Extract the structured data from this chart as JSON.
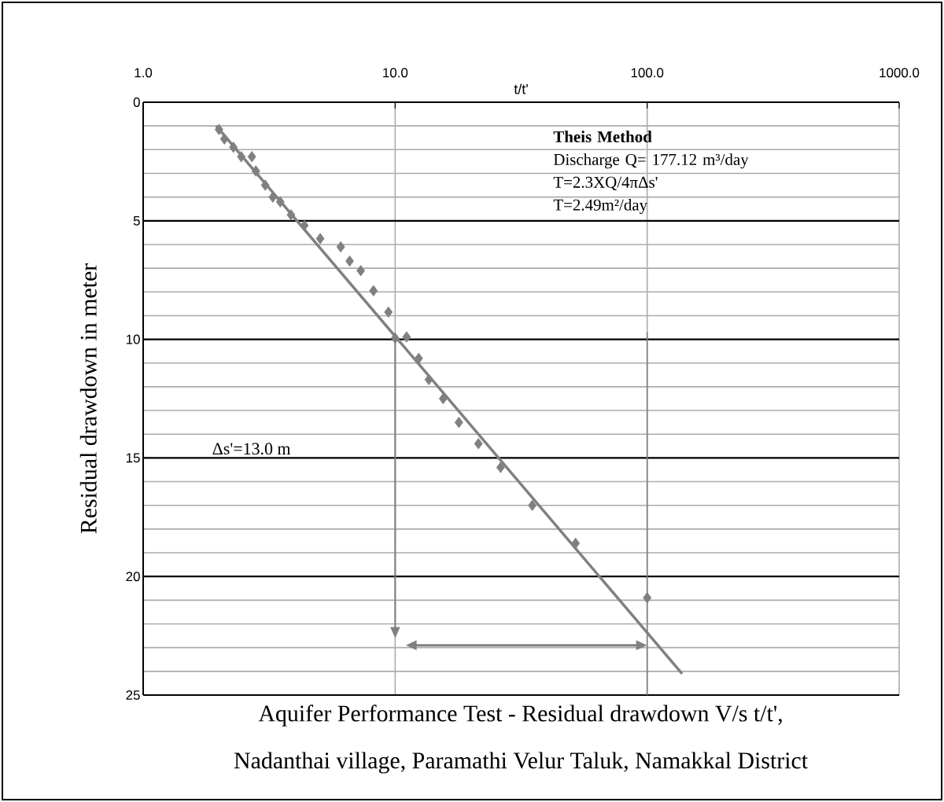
{
  "chart_data": {
    "type": "scatter",
    "title": "Aquifer Performance Test - Residual drawdown V/s t/t',",
    "subtitle": "Nadanthai village, Paramathi Velur Taluk, Namakkal District",
    "xlabel": "t/t'",
    "ylabel": "Residual drawdown in meter",
    "annotations": [
      "**Theis Method**",
      "Discharge Q= 177.12 m³/day",
      "T=2.3XQ/4πΔs'",
      "T=2.49m²/day",
      "Δs'=13.0 m"
    ],
    "log": "x",
    "grid": true,
    "marker": "diamond",
    "xlim": [
      1,
      1000
    ],
    "xticks": [
      {
        "value": 1,
        "label": "1.0"
      },
      {
        "value": 10,
        "label": "10.0"
      },
      {
        "value": 100,
        "label": "100.0"
      },
      {
        "value": 1000,
        "label": "1000.0"
      }
    ],
    "ylim": [
      25,
      0
    ],
    "yticks": [
      0,
      5,
      10,
      15,
      20,
      25
    ],
    "series": [
      {
        "color": "#808080",
        "x": [
          2.0,
          2.1,
          2.28,
          2.45,
          2.7,
          2.8,
          3.05,
          3.27,
          3.5,
          3.86,
          4.36,
          5.04,
          6.08,
          6.6,
          7.3,
          8.2,
          9.4,
          10,
          11.1,
          12.4,
          13.6,
          15.5,
          17.9,
          21.4,
          26.2,
          35,
          52,
          100
        ],
        "values": [
          1.15,
          1.55,
          1.9,
          2.3,
          2.3,
          2.9,
          3.5,
          4.0,
          4.2,
          4.75,
          5.2,
          5.75,
          6.1,
          6.7,
          7.1,
          7.95,
          8.85,
          9.95,
          9.9,
          10.8,
          11.7,
          12.5,
          13.5,
          14.4,
          15.4,
          17.0,
          18.6,
          20.9
        ]
      },
      {
        "type": "line",
        "color": "#808080",
        "marker": "none",
        "x": [
          1.95,
          137.6
        ],
        "values": [
          1.0,
          24.1
        ]
      }
    ]
  }
}
